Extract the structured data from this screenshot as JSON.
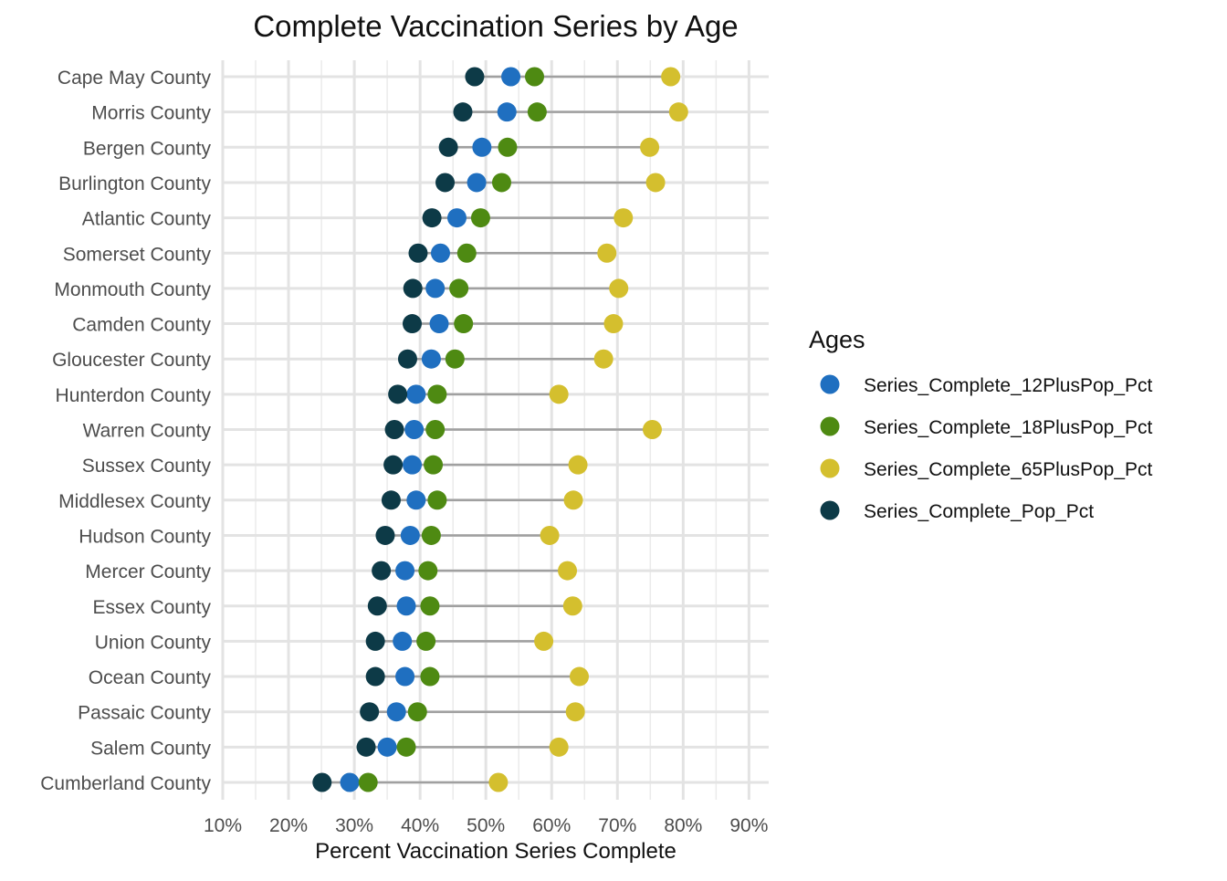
{
  "chart_data": {
    "type": "dumbbell",
    "title": "Complete Vaccination Series by Age",
    "xlabel": "Percent Vaccination Series Complete",
    "ylabel": "",
    "xlim": [
      10,
      93
    ],
    "x_ticks": [
      10,
      20,
      30,
      40,
      50,
      60,
      70,
      80,
      90
    ],
    "x_tick_labels": [
      "10%",
      "20%",
      "30%",
      "40%",
      "50%",
      "60%",
      "70%",
      "80%",
      "90%"
    ],
    "grid": true,
    "legend": {
      "title": "Ages",
      "position": "right"
    },
    "categories": [
      "Cape May County",
      "Morris County",
      "Bergen County",
      "Burlington County",
      "Atlantic County",
      "Somerset County",
      "Monmouth County",
      "Camden County",
      "Gloucester County",
      "Hunterdon County",
      "Warren County",
      "Sussex County",
      "Middlesex County",
      "Hudson County",
      "Mercer County",
      "Essex County",
      "Union County",
      "Ocean County",
      "Passaic County",
      "Salem County",
      "Cumberland County"
    ],
    "series": [
      {
        "name": "Series_Complete_12PlusPop_Pct",
        "color": "#1f6fc0",
        "values": [
          53.8,
          53.2,
          49.4,
          48.6,
          45.6,
          43.1,
          42.3,
          42.9,
          41.7,
          39.4,
          39.1,
          38.8,
          39.4,
          38.5,
          37.7,
          37.9,
          37.3,
          37.7,
          36.4,
          35.0,
          29.3
        ]
      },
      {
        "name": "Series_Complete_18PlusPop_Pct",
        "color": "#4e8a12",
        "values": [
          57.4,
          57.8,
          53.3,
          52.4,
          49.2,
          47.1,
          45.9,
          46.6,
          45.3,
          42.6,
          42.3,
          42.0,
          42.6,
          41.7,
          41.2,
          41.5,
          40.9,
          41.5,
          39.6,
          37.9,
          32.1
        ]
      },
      {
        "name": "Series_Complete_65PlusPop_Pct",
        "color": "#d4bf2e",
        "values": [
          78.1,
          79.3,
          74.9,
          75.8,
          70.9,
          68.4,
          70.2,
          69.4,
          67.9,
          61.1,
          75.3,
          64.0,
          63.3,
          59.7,
          62.4,
          63.2,
          58.8,
          64.2,
          63.6,
          61.1,
          51.9
        ]
      },
      {
        "name": "Series_Complete_Pop_Pct",
        "color": "#0d3a47",
        "values": [
          48.3,
          46.5,
          44.3,
          43.8,
          41.8,
          39.7,
          38.9,
          38.8,
          38.1,
          36.6,
          36.1,
          35.9,
          35.6,
          34.7,
          34.1,
          33.5,
          33.2,
          33.2,
          32.3,
          31.8,
          25.1
        ]
      }
    ]
  }
}
